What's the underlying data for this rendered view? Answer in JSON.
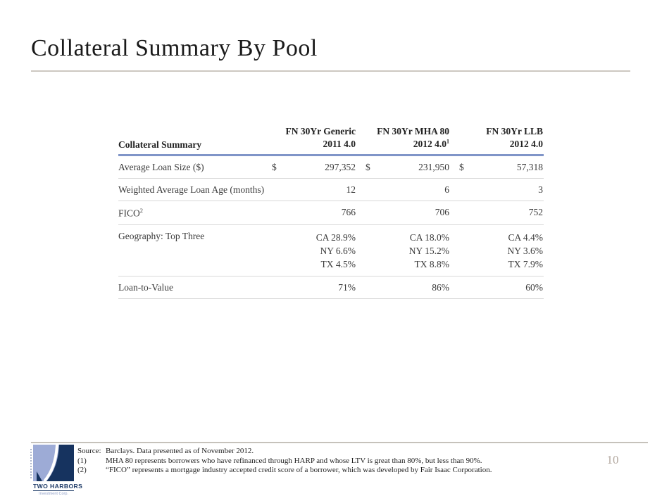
{
  "slide": {
    "title": "Collateral Summary By Pool",
    "page_number": "10"
  },
  "table": {
    "header": {
      "row_label": "Collateral Summary",
      "columns": [
        {
          "line1": "FN 30Yr Generic",
          "line2": "2011 4.0",
          "superscript": ""
        },
        {
          "line1": "FN 30Yr MHA 80",
          "line2": "2012 4.0",
          "superscript": "1"
        },
        {
          "line1": "FN 30Yr LLB",
          "line2": "2012 4.0",
          "superscript": ""
        }
      ]
    },
    "rows": [
      {
        "label": "Average Loan Size ($)",
        "label_sup": "",
        "cells": [
          {
            "prefix": "$",
            "value": "297,352"
          },
          {
            "prefix": "$",
            "value": "231,950"
          },
          {
            "prefix": "$",
            "value": "57,318"
          }
        ]
      },
      {
        "label": "Weighted Average Loan Age (months)",
        "label_sup": "",
        "cells": [
          {
            "prefix": "",
            "value": "12"
          },
          {
            "prefix": "",
            "value": "6"
          },
          {
            "prefix": "",
            "value": "3"
          }
        ]
      },
      {
        "label": "FICO",
        "label_sup": "2",
        "cells": [
          {
            "prefix": "",
            "value": "766"
          },
          {
            "prefix": "",
            "value": "706"
          },
          {
            "prefix": "",
            "value": "752"
          }
        ]
      },
      {
        "label": "Geography: Top Three",
        "label_sup": "",
        "cells": [
          {
            "lines": [
              "CA 28.9%",
              "NY 6.6%",
              "TX 4.5%"
            ]
          },
          {
            "lines": [
              "CA 18.0%",
              "NY 15.2%",
              "TX 8.8%"
            ]
          },
          {
            "lines": [
              "CA 4.4%",
              "NY 3.6%",
              "TX 7.9%"
            ]
          }
        ]
      },
      {
        "label": "Loan-to-Value",
        "label_sup": "",
        "cells": [
          {
            "prefix": "",
            "value": "71%"
          },
          {
            "prefix": "",
            "value": "86%"
          },
          {
            "prefix": "",
            "value": "60%"
          }
        ]
      }
    ]
  },
  "footer": {
    "source_label": "Source:",
    "source_text": "Barclays. Data presented as of November 2012.",
    "notes": [
      {
        "num": "(1)",
        "text": "MHA 80 represents borrowers who have refinanced through HARP and whose LTV is great than 80%, but less than 90%."
      },
      {
        "num": "(2)",
        "text": "“FICO” represents a mortgage industry accepted credit score of a borrower, which was developed by Fair Isaac Corporation."
      }
    ],
    "logo": {
      "name": "TWO HARBORS",
      "subtitle": "Investment Corp."
    }
  },
  "colors": {
    "header_underline_blue": "#8095c8",
    "row_divider_gray": "#d8d8d8",
    "title_rule_tan": "#cdc8c1",
    "footer_rule_gray": "#c6c2bb",
    "logo_light_blue": "#9dabd6",
    "logo_navy": "#16335f",
    "page_number_gray": "#b3a89f"
  }
}
